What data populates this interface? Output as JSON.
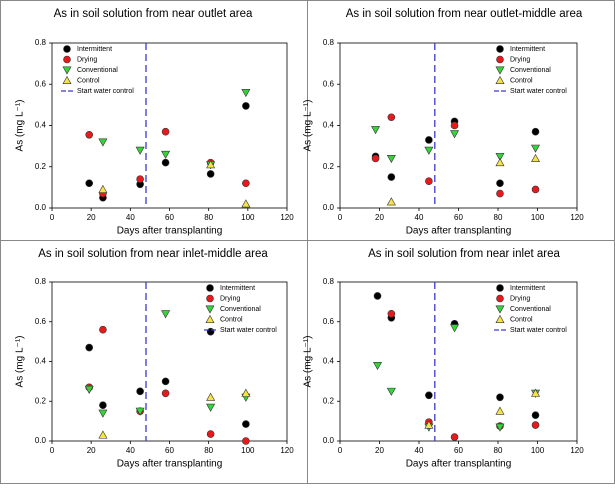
{
  "chart_data": [
    {
      "type": "scatter",
      "title": "As in soil solution from near outlet area",
      "xlabel": "Days after transplanting",
      "ylabel": "As (mg L⁻¹)",
      "xlim": [
        0,
        120
      ],
      "ylim": [
        0,
        0.8
      ],
      "xticks": [
        0,
        20,
        40,
        60,
        80,
        100,
        120
      ],
      "yticks": [
        {
          "value": 0,
          "label": "0.0"
        },
        0.2,
        0.4,
        0.6,
        0.8
      ],
      "legend": "upper left",
      "series": [
        {
          "name": "Intermittent",
          "color": "#000000",
          "marker": "circle",
          "x": [
            19,
            26,
            45,
            58,
            81,
            99
          ],
          "values": [
            0.12,
            0.05,
            0.115,
            0.22,
            0.165,
            0.495
          ]
        },
        {
          "name": "Drying",
          "color": "#e8191c",
          "marker": "circle",
          "x": [
            19,
            26,
            45,
            58,
            81,
            99
          ],
          "values": [
            0.355,
            0.07,
            0.14,
            0.37,
            0.22,
            0.12
          ]
        },
        {
          "name": "Conventional",
          "color": "#35d43a",
          "marker": "triangle-down",
          "x": [
            26,
            45,
            58,
            81,
            99
          ],
          "values": [
            0.32,
            0.28,
            0.26,
            0.21,
            0.56
          ]
        },
        {
          "name": "Control",
          "color": "#f6e24a",
          "marker": "triangle-up",
          "x": [
            26,
            81,
            99
          ],
          "values": [
            0.09,
            0.21,
            0.02
          ]
        }
      ],
      "reference_line": {
        "name": "Start water control",
        "x": 48,
        "color": "#3a3acb"
      }
    },
    {
      "type": "scatter",
      "title": "As in soil solution from near outlet-middle area",
      "xlabel": "Days after transplanting",
      "ylabel": "As (mg L⁻¹)",
      "xlim": [
        0,
        120
      ],
      "ylim": [
        0,
        0.8
      ],
      "xticks": [
        0,
        20,
        40,
        60,
        80,
        100,
        120
      ],
      "yticks": [
        {
          "value": 0,
          "label": "0.0"
        },
        0.2,
        0.4,
        0.6,
        0.8
      ],
      "legend": "upper right",
      "series": [
        {
          "name": "Intermittent",
          "color": "#000000",
          "marker": "circle",
          "x": [
            18,
            26,
            45,
            58,
            81,
            99
          ],
          "values": [
            0.25,
            0.15,
            0.33,
            0.42,
            0.12,
            0.37
          ]
        },
        {
          "name": "Drying",
          "color": "#e8191c",
          "marker": "circle",
          "x": [
            18,
            26,
            45,
            58,
            81,
            99
          ],
          "values": [
            0.24,
            0.44,
            0.13,
            0.4,
            0.07,
            0.09
          ]
        },
        {
          "name": "Conventional",
          "color": "#35d43a",
          "marker": "triangle-down",
          "x": [
            18,
            26,
            45,
            58,
            81,
            99
          ],
          "values": [
            0.38,
            0.24,
            0.28,
            0.36,
            0.25,
            0.29
          ]
        },
        {
          "name": "Control",
          "color": "#f6e24a",
          "marker": "triangle-up",
          "x": [
            26,
            81,
            99
          ],
          "values": [
            0.03,
            0.22,
            0.24
          ]
        }
      ],
      "reference_line": {
        "name": "Start water control",
        "x": 48,
        "color": "#3a3acb"
      }
    },
    {
      "type": "scatter",
      "title": "As in soil solution from near inlet-middle area",
      "xlabel": "Days after transplanting",
      "ylabel": "As (mg L⁻¹)",
      "xlim": [
        0,
        120
      ],
      "ylim": [
        0,
        0.8
      ],
      "xticks": [
        0,
        20,
        40,
        60,
        80,
        100,
        120
      ],
      "yticks": [
        {
          "value": 0,
          "label": "0.0"
        },
        0.2,
        0.4,
        0.6,
        0.8
      ],
      "legend": "upper right",
      "series": [
        {
          "name": "Intermittent",
          "color": "#000000",
          "marker": "circle",
          "x": [
            19,
            26,
            45,
            58,
            81,
            99
          ],
          "values": [
            0.47,
            0.18,
            0.25,
            0.3,
            0.55,
            0.085
          ]
        },
        {
          "name": "Drying",
          "color": "#e8191c",
          "marker": "circle",
          "x": [
            19,
            26,
            45,
            58,
            81,
            99
          ],
          "values": [
            0.27,
            0.56,
            0.15,
            0.24,
            0.035,
            0
          ]
        },
        {
          "name": "Conventional",
          "color": "#35d43a",
          "marker": "triangle-down",
          "x": [
            19,
            26,
            45,
            58,
            81,
            99
          ],
          "values": [
            0.26,
            0.14,
            0.15,
            0.64,
            0.17,
            0.22
          ]
        },
        {
          "name": "Control",
          "color": "#f6e24a",
          "marker": "triangle-up",
          "x": [
            26,
            81,
            99
          ],
          "values": [
            0.03,
            0.22,
            0.24
          ]
        }
      ],
      "reference_line": {
        "name": "Start water control",
        "x": 48,
        "color": "#3a3acb"
      }
    },
    {
      "type": "scatter",
      "title": "As in soil solution from near inlet area",
      "xlabel": "Days after transplanting",
      "ylabel": "As (mg L⁻¹)",
      "xlim": [
        0,
        120
      ],
      "ylim": [
        0,
        0.8
      ],
      "xticks": [
        0,
        20,
        40,
        60,
        80,
        100,
        120
      ],
      "yticks": [
        {
          "value": 0,
          "label": "0.0"
        },
        0.2,
        0.4,
        0.6,
        0.8
      ],
      "legend": "upper right",
      "series": [
        {
          "name": "Intermittent",
          "color": "#000000",
          "marker": "circle",
          "x": [
            19,
            26,
            45,
            58,
            81,
            99
          ],
          "values": [
            0.73,
            0.62,
            0.23,
            0.59,
            0.22,
            0.13
          ]
        },
        {
          "name": "Drying",
          "color": "#e8191c",
          "marker": "circle",
          "x": [
            26,
            45,
            58,
            81,
            99
          ],
          "values": [
            0.64,
            0.095,
            0.02,
            0.075,
            0.08
          ]
        },
        {
          "name": "Conventional",
          "color": "#35d43a",
          "marker": "triangle-down",
          "x": [
            19,
            26,
            45,
            58,
            81,
            99
          ],
          "values": [
            0.38,
            0.25,
            0.07,
            0.57,
            0.07,
            0.24
          ]
        },
        {
          "name": "Control",
          "color": "#f6e24a",
          "marker": "triangle-up",
          "x": [
            45,
            81,
            99
          ],
          "values": [
            0.08,
            0.15,
            0.24
          ]
        }
      ],
      "reference_line": {
        "name": "Start water control",
        "x": 48,
        "color": "#3a3acb"
      }
    }
  ]
}
